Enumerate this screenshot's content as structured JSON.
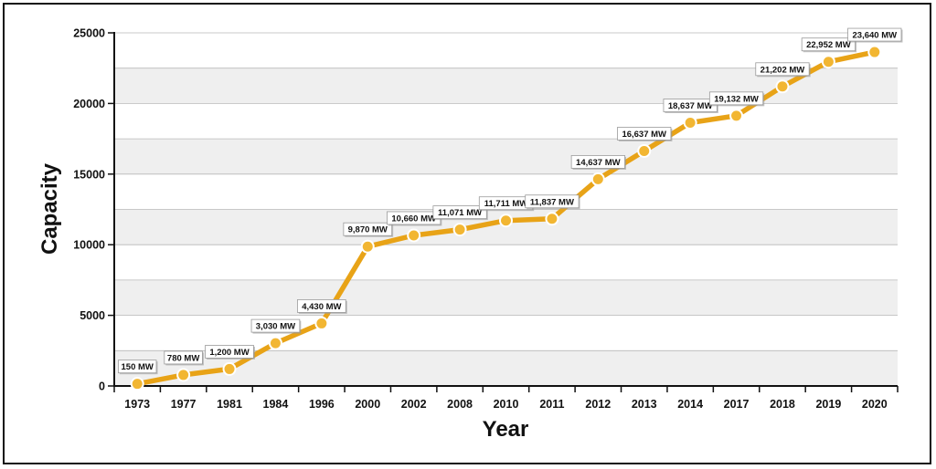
{
  "chart_data": {
    "type": "line",
    "xlabel": "Year",
    "ylabel": "Capacity",
    "ylim": [
      0,
      25000
    ],
    "yticks": [
      "0",
      "5000",
      "10000",
      "15000",
      "20000",
      "25000"
    ],
    "categories": [
      "1973",
      "1977",
      "1981",
      "1984",
      "1996",
      "2000",
      "2002",
      "2008",
      "2010",
      "2011",
      "2012",
      "2013",
      "2014",
      "2017",
      "2018",
      "2019",
      "2020"
    ],
    "series": [
      {
        "values": [
          150,
          780,
          1200,
          3030,
          4430,
          9870,
          10660,
          11071,
          11711,
          11837,
          14637,
          16637,
          18637,
          19132,
          21202,
          22952,
          23640
        ],
        "labels": [
          "150 MW",
          "780 MW",
          "1,200 MW",
          "3,030 MW",
          "4,430 MW",
          "9,870 MW",
          "10,660 MW",
          "11,071 MW",
          "11,711 MW",
          "11,837 MW",
          "14,637 MW",
          "16,637 MW",
          "18,637 MW",
          "19,132 MW",
          "21,202 MW",
          "22,952 MW",
          "23,640 MW"
        ]
      }
    ],
    "grid": true,
    "line_color": "#E8A317",
    "marker_fill": "#F2B632",
    "band_color": "#EFEFEF"
  }
}
